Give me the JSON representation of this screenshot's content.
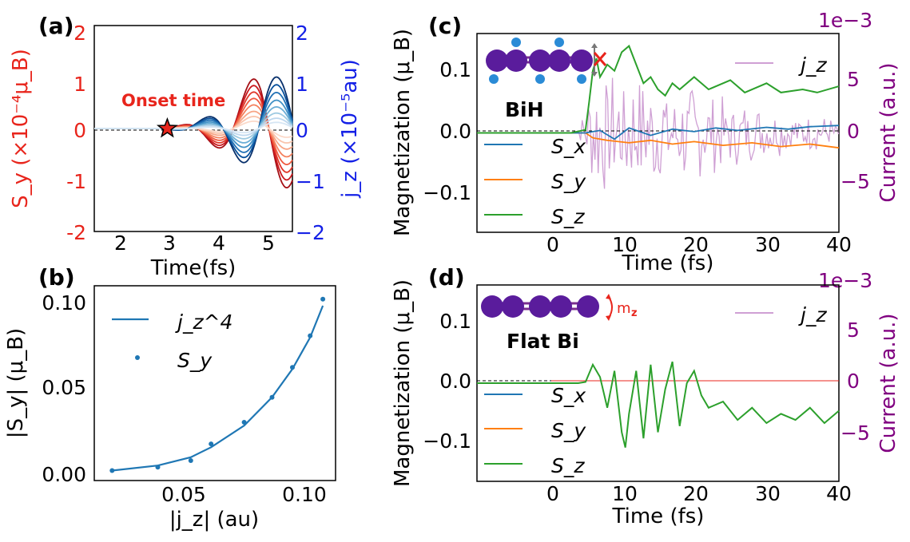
{
  "figure": {
    "panels": [
      "(a)",
      "(b)",
      "(c)",
      "(d)"
    ]
  },
  "colors": {
    "red": "#e8251c",
    "blue": "#1420e6",
    "sx": "#1f77b4",
    "sy": "#ff7f0e",
    "sz": "#2ca02c",
    "jz": "#cfa0d4",
    "purple": "#800080"
  },
  "chart_data": [
    {
      "id": "a",
      "type": "line",
      "xlabel": "Time(fs)",
      "ylabel_left": "S_y (×10⁻⁴μ_B)",
      "ylabel_right": "j_z (×10⁻⁵au)",
      "xlim": [
        1.6,
        5.4
      ],
      "ylim": [
        -2,
        2
      ],
      "xticks": [
        "2",
        "3",
        "4",
        "5"
      ],
      "yticks_left": [
        "-2",
        "-1",
        "0",
        "1",
        "2"
      ],
      "yticks_right": [
        "−2",
        "−1",
        "0",
        "1",
        "2"
      ],
      "annotation": "Onset time",
      "onset_marker": {
        "x": 3.0,
        "y": 0.0
      },
      "red_amplitudes": [
        1.15,
        1.0,
        0.85,
        0.7,
        0.55,
        0.4,
        0.28,
        0.17
      ],
      "blue_amplitudes": [
        1.0,
        0.85,
        0.7,
        0.55,
        0.42,
        0.3,
        0.2,
        0.12
      ]
    },
    {
      "id": "b",
      "type": "scatter",
      "xlabel": "|j_z| (au)",
      "ylabel": "|S_y| (μ_B)",
      "xlim": [
        0.018,
        0.113
      ],
      "ylim": [
        -0.003,
        0.114
      ],
      "xticks": [
        "0.05",
        "0.10"
      ],
      "yticks": [
        "0.00",
        "0.05",
        "0.10"
      ],
      "series": [
        {
          "name": "j_z^4",
          "kind": "line",
          "x": [
            0.025,
            0.043,
            0.056,
            0.064,
            0.077,
            0.088,
            0.096,
            0.103,
            0.108
          ],
          "y": [
            0.003,
            0.006,
            0.011,
            0.017,
            0.03,
            0.047,
            0.064,
            0.083,
            0.102
          ]
        },
        {
          "name": "S_y",
          "kind": "points",
          "x": [
            0.025,
            0.043,
            0.056,
            0.064,
            0.077,
            0.088,
            0.096,
            0.103,
            0.108
          ],
          "y": [
            0.003,
            0.005,
            0.009,
            0.019,
            0.032,
            0.047,
            0.065,
            0.084,
            0.106
          ]
        }
      ]
    },
    {
      "id": "c",
      "type": "line",
      "xlabel": "Time (fs)",
      "ylabel_left": "Magnetization (μ_B)",
      "ylabel_right": "Current (a.u.)",
      "right_scale": "1e−3",
      "xlim": [
        -10,
        40
      ],
      "ylim": [
        -0.16,
        0.16
      ],
      "xticks": [
        "0",
        "10",
        "20",
        "30",
        "40"
      ],
      "yticks_left": [
        "0.1",
        "0.0",
        "−0.1"
      ],
      "yticks_right": [
        "5",
        "0",
        "−5"
      ],
      "label": "BiH",
      "legend": [
        "S_x",
        "S_y",
        "S_z"
      ],
      "legend_right": "j_z",
      "sz": [
        [
          -10,
          0
        ],
        [
          3,
          0
        ],
        [
          5,
          0.005
        ],
        [
          5.5,
          0.05
        ],
        [
          6,
          0.1
        ],
        [
          6.5,
          0.12
        ],
        [
          7,
          0.09
        ],
        [
          8,
          0.11
        ],
        [
          9,
          0.1
        ],
        [
          10,
          0.13
        ],
        [
          11,
          0.14
        ],
        [
          12,
          0.11
        ],
        [
          13,
          0.08
        ],
        [
          14,
          0.09
        ],
        [
          15,
          0.07
        ],
        [
          16,
          0.06
        ],
        [
          17,
          0.08
        ],
        [
          18,
          0.07
        ],
        [
          20,
          0.09
        ],
        [
          22,
          0.07
        ],
        [
          25,
          0.085
        ],
        [
          27,
          0.065
        ],
        [
          30,
          0.08
        ],
        [
          32,
          0.065
        ],
        [
          35,
          0.07
        ],
        [
          37,
          0.065
        ],
        [
          40,
          0.075
        ]
      ],
      "sx": [
        [
          -10,
          0
        ],
        [
          5,
          0
        ],
        [
          7,
          0.004
        ],
        [
          9,
          -0.01
        ],
        [
          11,
          0.008
        ],
        [
          14,
          -0.004
        ],
        [
          17,
          0.006
        ],
        [
          20,
          0.002
        ],
        [
          23,
          0.008
        ],
        [
          26,
          0.004
        ],
        [
          30,
          0.009
        ],
        [
          33,
          0.006
        ],
        [
          36,
          0.01
        ],
        [
          40,
          0.012
        ]
      ],
      "sy": [
        [
          -10,
          0
        ],
        [
          5,
          0
        ],
        [
          6,
          -0.008
        ],
        [
          8,
          -0.012
        ],
        [
          11,
          -0.016
        ],
        [
          14,
          -0.012
        ],
        [
          17,
          -0.018
        ],
        [
          20,
          -0.014
        ],
        [
          24,
          -0.02
        ],
        [
          28,
          -0.016
        ],
        [
          32,
          -0.022
        ],
        [
          36,
          -0.018
        ],
        [
          40,
          -0.024
        ]
      ]
    },
    {
      "id": "d",
      "type": "line",
      "xlabel": "Time (fs)",
      "ylabel_left": "Magnetization (μ_B)",
      "ylabel_right": "Current (a.u.)",
      "right_scale": "1e−3",
      "xlim": [
        -10,
        40
      ],
      "ylim": [
        -0.16,
        0.16
      ],
      "xticks": [
        "0",
        "10",
        "20",
        "30",
        "40"
      ],
      "yticks_left": [
        "0.1",
        "0.0",
        "−0.1"
      ],
      "yticks_right": [
        "5",
        "0",
        "−5"
      ],
      "label": "Flat Bi",
      "mag_label": "m",
      "mag_sub": "z",
      "legend": [
        "S_x",
        "S_y",
        "S_z"
      ],
      "legend_right": "j_z",
      "sz": [
        [
          -10,
          0
        ],
        [
          4,
          0
        ],
        [
          5,
          0.002
        ],
        [
          6,
          0.03
        ],
        [
          7,
          0.01
        ],
        [
          8,
          -0.04
        ],
        [
          9,
          0.02
        ],
        [
          10,
          -0.08
        ],
        [
          10.5,
          -0.105
        ],
        [
          11,
          -0.05
        ],
        [
          12,
          0.02
        ],
        [
          13,
          -0.09
        ],
        [
          14,
          0.03
        ],
        [
          15,
          -0.08
        ],
        [
          16,
          -0.01
        ],
        [
          17,
          0.035
        ],
        [
          18,
          -0.07
        ],
        [
          19,
          0.0
        ],
        [
          20,
          0.02
        ],
        [
          21,
          -0.02
        ],
        [
          22,
          -0.04
        ],
        [
          24,
          -0.03
        ],
        [
          26,
          -0.06
        ],
        [
          28,
          -0.04
        ],
        [
          30,
          -0.065
        ],
        [
          32,
          -0.05
        ],
        [
          34,
          -0.06
        ],
        [
          36,
          -0.04
        ],
        [
          38,
          -0.065
        ],
        [
          40,
          -0.045
        ]
      ]
    }
  ]
}
